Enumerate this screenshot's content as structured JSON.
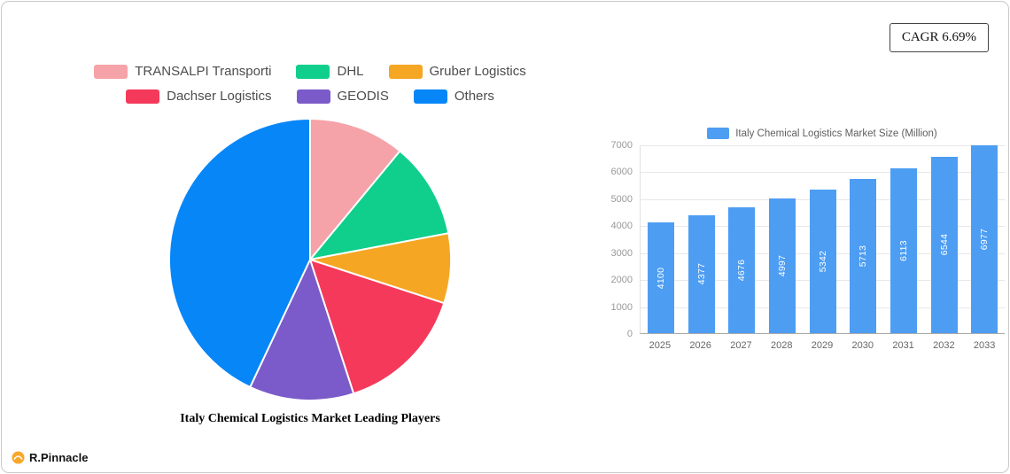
{
  "badge": {
    "label": "CAGR 6.69%"
  },
  "logo": {
    "text": "R.Pinnacle"
  },
  "chart_data": [
    {
      "type": "pie",
      "title": "Italy Chemical Logistics Market Leading Players",
      "labels": [
        "TRANSALPI Transporti",
        "DHL",
        "Gruber Logistics",
        "Dachser Logistics",
        "GEODIS",
        "Others"
      ],
      "values": [
        11,
        11,
        8,
        15,
        12,
        43
      ],
      "values_unit": "%",
      "colors": [
        "#F5A3A8",
        "#10CF8D",
        "#F5A623",
        "#F4395B",
        "#7B5BC9",
        "#0786F8"
      ],
      "legend_rows": [
        3,
        3
      ],
      "legend_position": "top",
      "start_angle": "12-o-clock-clockwise"
    },
    {
      "type": "bar",
      "title": "Italy Chemical Logistics Market Size (Million)",
      "categories": [
        "2025",
        "2026",
        "2027",
        "2028",
        "2029",
        "2030",
        "2031",
        "2032",
        "2033"
      ],
      "values": [
        4100,
        4377,
        4676,
        4997,
        5342,
        5713,
        6113,
        6544,
        6977
      ],
      "y_ticks": [
        0,
        1000,
        2000,
        3000,
        4000,
        5000,
        6000,
        7000
      ],
      "ylim": [
        0,
        7000
      ],
      "bar_color": "#4D9DF3",
      "grid": true,
      "legend_position": "top",
      "value_labels": "inside-vertical"
    }
  ]
}
